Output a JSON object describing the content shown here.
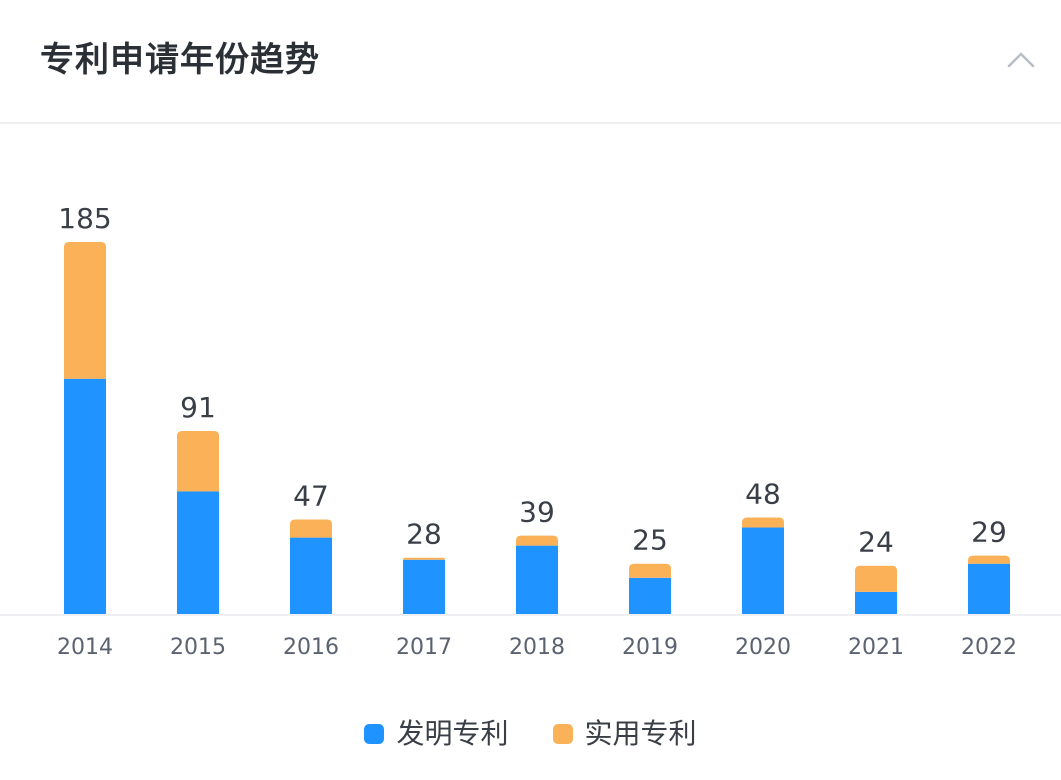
{
  "header": {
    "title": "专利申请年份趋势",
    "collapse_icon": "chevron-up-icon"
  },
  "colors": {
    "invention": "#1f93ff",
    "utility": "#fbb157",
    "axis": "#eef0f3",
    "label": "#3a3f47",
    "tick": "#5b6270"
  },
  "legend": [
    {
      "key": "invention",
      "label": "发明专利",
      "color": "#1f93ff"
    },
    {
      "key": "utility",
      "label": "实用专利",
      "color": "#fbb157"
    }
  ],
  "chart_data": {
    "type": "bar",
    "stacked": true,
    "title": "专利申请年份趋势",
    "categories": [
      "2014",
      "2015",
      "2016",
      "2017",
      "2018",
      "2019",
      "2020",
      "2021",
      "2022"
    ],
    "series": [
      {
        "name": "发明专利",
        "values": [
          117,
          61,
          38,
          27,
          34,
          18,
          43,
          11,
          25
        ]
      },
      {
        "name": "实用专利",
        "values": [
          68,
          30,
          9,
          1,
          5,
          7,
          5,
          13,
          4
        ]
      }
    ],
    "totals": [
      185,
      91,
      47,
      28,
      39,
      25,
      48,
      24,
      29
    ],
    "ylim": [
      0,
      185
    ],
    "grid": false,
    "legend_position": "bottom-center"
  }
}
